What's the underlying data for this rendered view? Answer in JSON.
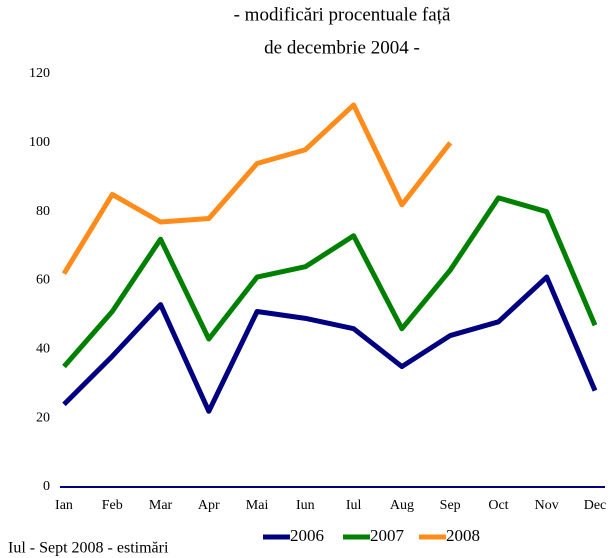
{
  "chart_data": {
    "type": "line",
    "title": [
      "- modificări procentuale față",
      "de decembrie 2004 -"
    ],
    "note": "Iul - Sept 2008 - estimări",
    "categories": [
      "Ian",
      "Feb",
      "Mar",
      "Apr",
      "Mai",
      "Iun",
      "Iul",
      "Aug",
      "Sep",
      "Oct",
      "Nov",
      "Dec"
    ],
    "series": [
      {
        "name": "2006",
        "color": "#000080",
        "values": [
          24,
          38,
          53,
          22,
          51,
          49,
          46,
          35,
          44,
          48,
          61,
          28
        ]
      },
      {
        "name": "2007",
        "color": "#008000",
        "values": [
          35,
          51,
          72,
          43,
          61,
          64,
          73,
          46,
          63,
          84,
          80,
          47
        ]
      },
      {
        "name": "2008",
        "color": "#ff8c1a",
        "values": [
          62,
          85,
          77,
          78,
          94,
          98,
          111,
          82,
          100,
          null,
          null,
          null
        ]
      }
    ],
    "ylim": [
      0,
      120
    ],
    "yticks": [
      0,
      20,
      40,
      60,
      80,
      100,
      120
    ],
    "grid": false,
    "legend": "bottom"
  }
}
